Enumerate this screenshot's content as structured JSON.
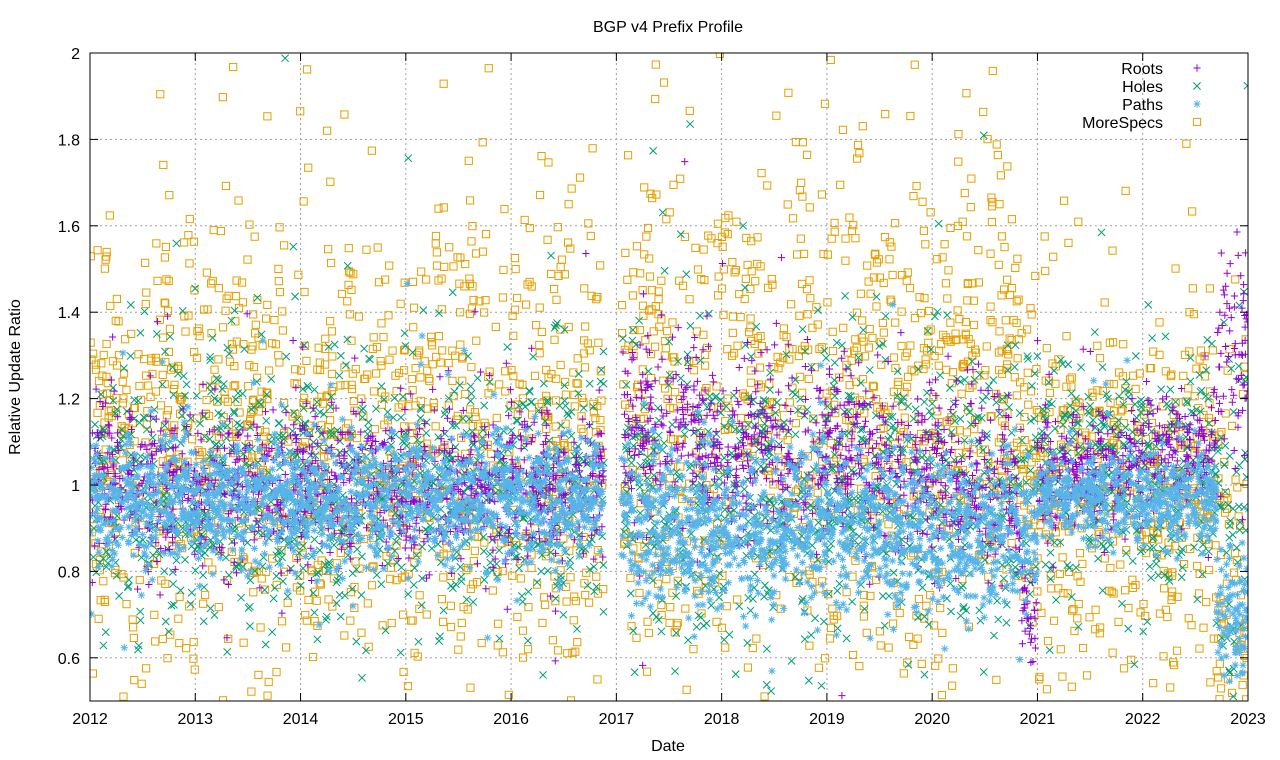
{
  "chart_data": {
    "type": "scatter",
    "title": "BGP v4 Prefix Profile",
    "xlabel": "Date",
    "ylabel": "Relative Update Ratio",
    "xlim": [
      2012,
      2023
    ],
    "ylim": [
      0.5,
      2.0
    ],
    "x_ticks": [
      "2012",
      "2013",
      "2014",
      "2015",
      "2016",
      "2017",
      "2018",
      "2019",
      "2020",
      "2021",
      "2022",
      "2023"
    ],
    "y_ticks": [
      "0.6",
      "0.8",
      "1",
      "1.2",
      "1.4",
      "1.6",
      "1.8",
      "2"
    ],
    "y_tick_values": [
      0.6,
      0.8,
      1.0,
      1.2,
      1.4,
      1.6,
      1.8,
      2.0
    ],
    "grid": true,
    "legend_position": "top-right",
    "gap": [
      2016.88,
      2017.05
    ],
    "series": [
      {
        "name": "Roots",
        "marker": "plus",
        "color": "#9400d3",
        "count": 2600,
        "segments": [
          {
            "from": 2012.0,
            "to": 2016.88,
            "start_mean": 1.0,
            "end_mean": 1.0,
            "spread": 0.09
          },
          {
            "from": 2017.05,
            "to": 2019.3,
            "start_mean": 1.12,
            "end_mean": 1.06,
            "spread": 0.11
          },
          {
            "from": 2019.3,
            "to": 2020.85,
            "start_mean": 1.05,
            "end_mean": 1.0,
            "spread": 0.1
          },
          {
            "from": 2020.85,
            "to": 2021.0,
            "start_mean": 0.68,
            "end_mean": 0.68,
            "spread": 0.06
          },
          {
            "from": 2021.0,
            "to": 2022.7,
            "start_mean": 1.02,
            "end_mean": 1.08,
            "spread": 0.07
          },
          {
            "from": 2022.7,
            "to": 2023.0,
            "start_mean": 1.25,
            "end_mean": 1.3,
            "spread": 0.12
          }
        ]
      },
      {
        "name": "Holes",
        "marker": "cross",
        "color": "#009e73",
        "count": 2200,
        "segments": [
          {
            "from": 2012.0,
            "to": 2016.88,
            "start_mean": 1.0,
            "end_mean": 0.98,
            "spread": 0.16
          },
          {
            "from": 2017.05,
            "to": 2021.0,
            "start_mean": 1.02,
            "end_mean": 0.98,
            "spread": 0.18
          },
          {
            "from": 2021.0,
            "to": 2022.7,
            "start_mean": 1.05,
            "end_mean": 1.0,
            "spread": 0.14
          },
          {
            "from": 2022.7,
            "to": 2023.0,
            "start_mean": 0.9,
            "end_mean": 0.9,
            "spread": 0.25
          }
        ]
      },
      {
        "name": "Paths",
        "marker": "star",
        "color": "#56b4e9",
        "count": 3200,
        "segments": [
          {
            "from": 2012.0,
            "to": 2016.88,
            "start_mean": 0.97,
            "end_mean": 0.96,
            "spread": 0.07
          },
          {
            "from": 2017.05,
            "to": 2021.0,
            "start_mean": 0.9,
            "end_mean": 0.88,
            "spread": 0.09
          },
          {
            "from": 2021.0,
            "to": 2022.7,
            "start_mean": 0.97,
            "end_mean": 0.97,
            "spread": 0.05
          },
          {
            "from": 2022.7,
            "to": 2023.0,
            "start_mean": 0.72,
            "end_mean": 0.7,
            "spread": 0.08
          }
        ]
      },
      {
        "name": "MoreSpecs",
        "marker": "square",
        "color": "#e69f00",
        "count": 2700,
        "segments": [
          {
            "from": 2012.0,
            "to": 2016.88,
            "start_mean": 1.08,
            "end_mean": 1.12,
            "spread": 0.27
          },
          {
            "from": 2017.05,
            "to": 2020.85,
            "start_mean": 1.15,
            "end_mean": 1.2,
            "spread": 0.3
          },
          {
            "from": 2020.85,
            "to": 2022.7,
            "start_mean": 1.0,
            "end_mean": 1.0,
            "spread": 0.2
          },
          {
            "from": 2022.7,
            "to": 2023.0,
            "start_mean": 0.75,
            "end_mean": 0.8,
            "spread": 0.3
          }
        ]
      }
    ]
  }
}
